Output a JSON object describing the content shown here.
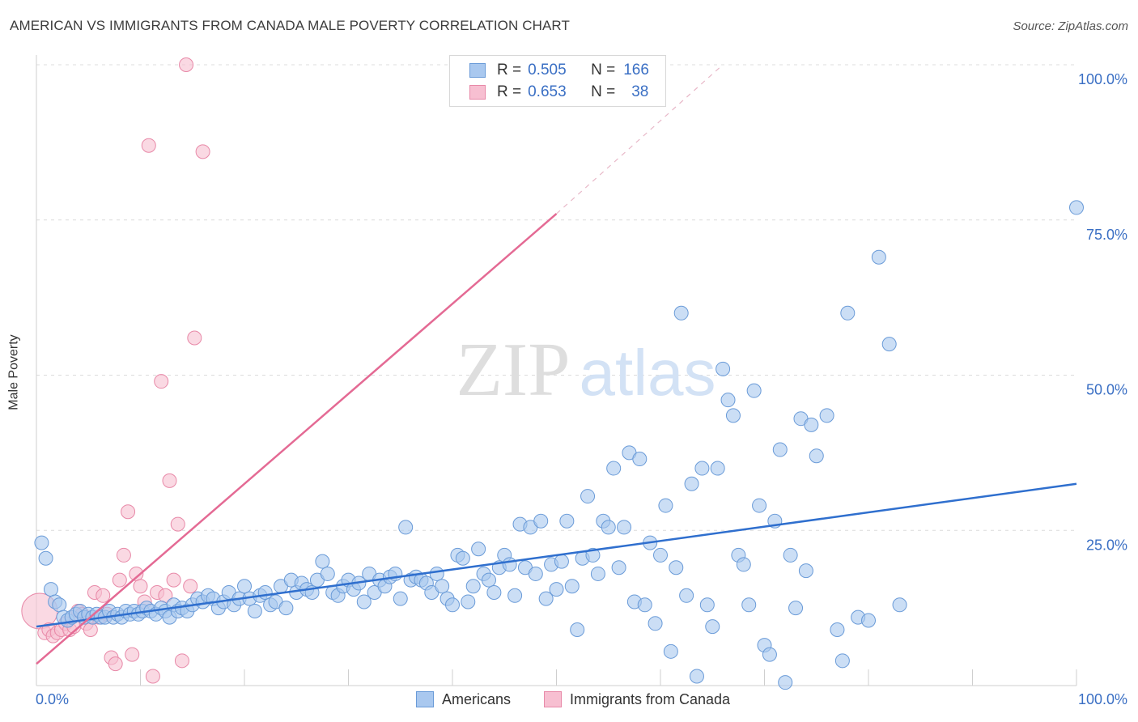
{
  "header": {
    "title": "AMERICAN VS IMMIGRANTS FROM CANADA MALE POVERTY CORRELATION CHART",
    "source": "Source: ZipAtlas.com"
  },
  "watermark": {
    "part1": "ZIP",
    "part2": "atlas"
  },
  "legend": {
    "rows": [
      {
        "r_label": "R =",
        "r_value": "0.505",
        "n_label": "N =",
        "n_value": "166",
        "color": "#a9c8ef",
        "border": "#6a9bd8"
      },
      {
        "r_label": "R =",
        "r_value": "0.653",
        "n_label": "N =",
        "n_value": "38",
        "color": "#f7bfd1",
        "border": "#e889a8"
      }
    ]
  },
  "bottom_legend": {
    "americans": "Americans",
    "immigrants": "Immigrants from Canada"
  },
  "colors": {
    "blue_fill": "#a9c8ef",
    "blue_stroke": "#6a9bd8",
    "blue_line": "#2f6fce",
    "pink_fill": "#f7bfd1",
    "pink_stroke": "#e889a8",
    "pink_line": "#e46a94",
    "grid": "#dcdcdc",
    "tick_label": "#3a6fc4"
  },
  "chart_data": {
    "type": "scatter",
    "ylabel": "Male Poverty",
    "xlim": [
      0,
      100
    ],
    "ylim": [
      0,
      100
    ],
    "x_tick_labels": [
      "0.0%",
      "100.0%"
    ],
    "y_ticks": [
      {
        "value": 25,
        "label": "25.0%"
      },
      {
        "value": 50,
        "label": "50.0%"
      },
      {
        "value": 75,
        "label": "75.0%"
      },
      {
        "value": 100,
        "label": "100.0%"
      }
    ],
    "grid": "horizontal dashed",
    "series": [
      {
        "name": "Americans",
        "trend": {
          "x0": 0,
          "y0": 9.5,
          "x1": 100,
          "y1": 32.5
        },
        "points": [
          [
            0.5,
            23
          ],
          [
            0.9,
            20.5
          ],
          [
            1.4,
            15.5
          ],
          [
            1.8,
            13.5
          ],
          [
            2.2,
            13
          ],
          [
            2.6,
            11
          ],
          [
            3,
            10.5
          ],
          [
            3.4,
            11
          ],
          [
            3.8,
            11.5
          ],
          [
            4.2,
            12
          ],
          [
            4.6,
            11
          ],
          [
            5,
            11.5
          ],
          [
            5.4,
            11
          ],
          [
            5.8,
            11.5
          ],
          [
            6.2,
            11
          ],
          [
            6.6,
            11
          ],
          [
            7,
            12
          ],
          [
            7.4,
            11
          ],
          [
            7.8,
            11.5
          ],
          [
            8.2,
            11
          ],
          [
            8.6,
            12
          ],
          [
            9,
            11.5
          ],
          [
            9.4,
            12
          ],
          [
            9.8,
            11.5
          ],
          [
            10.2,
            12
          ],
          [
            10.6,
            12.5
          ],
          [
            11,
            12
          ],
          [
            11.5,
            11.5
          ],
          [
            12,
            12.5
          ],
          [
            12.4,
            12
          ],
          [
            12.8,
            11
          ],
          [
            13.2,
            13
          ],
          [
            13.6,
            12
          ],
          [
            14,
            12.5
          ],
          [
            14.5,
            12
          ],
          [
            15,
            13
          ],
          [
            15.5,
            14
          ],
          [
            16,
            13.5
          ],
          [
            16.5,
            14.5
          ],
          [
            17,
            14
          ],
          [
            17.5,
            12.5
          ],
          [
            18,
            13.5
          ],
          [
            18.5,
            15
          ],
          [
            19,
            13
          ],
          [
            19.5,
            14
          ],
          [
            20,
            16
          ],
          [
            20.5,
            14
          ],
          [
            21,
            12
          ],
          [
            21.5,
            14.5
          ],
          [
            22,
            15
          ],
          [
            22.5,
            13
          ],
          [
            23,
            13.5
          ],
          [
            23.5,
            16
          ],
          [
            24,
            12.5
          ],
          [
            24.5,
            17
          ],
          [
            25,
            15
          ],
          [
            25.5,
            16.5
          ],
          [
            26,
            15.5
          ],
          [
            26.5,
            15
          ],
          [
            27,
            17
          ],
          [
            27.5,
            20
          ],
          [
            28,
            18
          ],
          [
            28.5,
            15
          ],
          [
            29,
            14.5
          ],
          [
            29.5,
            16
          ],
          [
            30,
            17
          ],
          [
            30.5,
            15.5
          ],
          [
            31,
            16.5
          ],
          [
            31.5,
            13.5
          ],
          [
            32,
            18
          ],
          [
            32.5,
            15
          ],
          [
            33,
            17
          ],
          [
            33.5,
            16
          ],
          [
            34,
            17.5
          ],
          [
            34.5,
            18
          ],
          [
            35,
            14
          ],
          [
            35.5,
            25.5
          ],
          [
            36,
            17
          ],
          [
            36.5,
            17.5
          ],
          [
            37,
            17
          ],
          [
            37.5,
            16.5
          ],
          [
            38,
            15
          ],
          [
            38.5,
            18
          ],
          [
            39,
            16
          ],
          [
            39.5,
            14
          ],
          [
            40,
            13
          ],
          [
            40.5,
            21
          ],
          [
            41,
            20.5
          ],
          [
            41.5,
            13.5
          ],
          [
            42,
            16
          ],
          [
            42.5,
            22
          ],
          [
            43,
            18
          ],
          [
            43.5,
            17
          ],
          [
            44,
            15
          ],
          [
            44.5,
            19
          ],
          [
            45,
            21
          ],
          [
            45.5,
            19.5
          ],
          [
            46,
            14.5
          ],
          [
            46.5,
            26
          ],
          [
            47,
            19
          ],
          [
            47.5,
            25.5
          ],
          [
            48,
            18
          ],
          [
            48.5,
            26.5
          ],
          [
            49,
            14
          ],
          [
            49.5,
            19.5
          ],
          [
            50,
            15.5
          ],
          [
            50.5,
            20
          ],
          [
            51,
            26.5
          ],
          [
            51.5,
            16
          ],
          [
            52,
            9
          ],
          [
            52.5,
            20.5
          ],
          [
            53,
            30.5
          ],
          [
            53.5,
            21
          ],
          [
            54,
            18
          ],
          [
            54.5,
            26.5
          ],
          [
            55,
            25.5
          ],
          [
            55.5,
            35
          ],
          [
            56,
            19
          ],
          [
            56.5,
            25.5
          ],
          [
            57,
            37.5
          ],
          [
            57.5,
            13.5
          ],
          [
            58,
            36.5
          ],
          [
            58.5,
            13
          ],
          [
            59,
            23
          ],
          [
            59.5,
            10
          ],
          [
            60,
            21
          ],
          [
            60.5,
            29
          ],
          [
            61,
            5.5
          ],
          [
            61.5,
            19
          ],
          [
            62,
            60
          ],
          [
            62.5,
            14.5
          ],
          [
            63,
            32.5
          ],
          [
            63.5,
            1.5
          ],
          [
            64,
            35
          ],
          [
            64.5,
            13
          ],
          [
            65,
            9.5
          ],
          [
            65.5,
            35
          ],
          [
            66,
            51
          ],
          [
            66.5,
            46
          ],
          [
            67,
            43.5
          ],
          [
            67.5,
            21
          ],
          [
            68,
            19.5
          ],
          [
            68.5,
            13
          ],
          [
            69,
            47.5
          ],
          [
            69.5,
            29
          ],
          [
            70,
            6.5
          ],
          [
            70.5,
            5
          ],
          [
            71,
            26.5
          ],
          [
            71.5,
            38
          ],
          [
            72,
            0.5
          ],
          [
            72.5,
            21
          ],
          [
            73,
            12.5
          ],
          [
            73.5,
            43
          ],
          [
            74,
            18.5
          ],
          [
            74.5,
            42
          ],
          [
            75,
            37
          ],
          [
            76,
            43.5
          ],
          [
            77,
            9
          ],
          [
            77.5,
            4
          ],
          [
            78,
            60
          ],
          [
            79,
            11
          ],
          [
            80,
            10.5
          ],
          [
            81,
            69
          ],
          [
            82,
            55
          ],
          [
            83,
            13
          ],
          [
            100,
            77
          ]
        ]
      },
      {
        "name": "Immigrants from Canada",
        "trend": {
          "x0": 0,
          "y0": 3.5,
          "x1": 50,
          "y1": 76
        },
        "trend_extended": {
          "x1": 66,
          "y1": 100
        },
        "points": [
          [
            0.3,
            12
          ],
          [
            0.8,
            8.5
          ],
          [
            1.2,
            9
          ],
          [
            1.6,
            8
          ],
          [
            2,
            8.5
          ],
          [
            2.4,
            9
          ],
          [
            2.8,
            10
          ],
          [
            3.2,
            9
          ],
          [
            3.6,
            9.5
          ],
          [
            4,
            12
          ],
          [
            4.4,
            11.5
          ],
          [
            4.8,
            10
          ],
          [
            5.2,
            9
          ],
          [
            5.6,
            15
          ],
          [
            6,
            11
          ],
          [
            6.4,
            14.5
          ],
          [
            6.8,
            11.5
          ],
          [
            7.2,
            4.5
          ],
          [
            7.6,
            3.5
          ],
          [
            8,
            17
          ],
          [
            8.4,
            21
          ],
          [
            8.8,
            28
          ],
          [
            9.2,
            5
          ],
          [
            9.6,
            18
          ],
          [
            10,
            16
          ],
          [
            10.4,
            13.5
          ],
          [
            10.8,
            87
          ],
          [
            11.2,
            1.5
          ],
          [
            11.6,
            15
          ],
          [
            12,
            49
          ],
          [
            12.4,
            14.5
          ],
          [
            12.8,
            33
          ],
          [
            13.2,
            17
          ],
          [
            13.6,
            26
          ],
          [
            14,
            4
          ],
          [
            14.4,
            100
          ],
          [
            14.8,
            16
          ],
          [
            15.2,
            56
          ],
          [
            16,
            86
          ]
        ]
      }
    ]
  }
}
